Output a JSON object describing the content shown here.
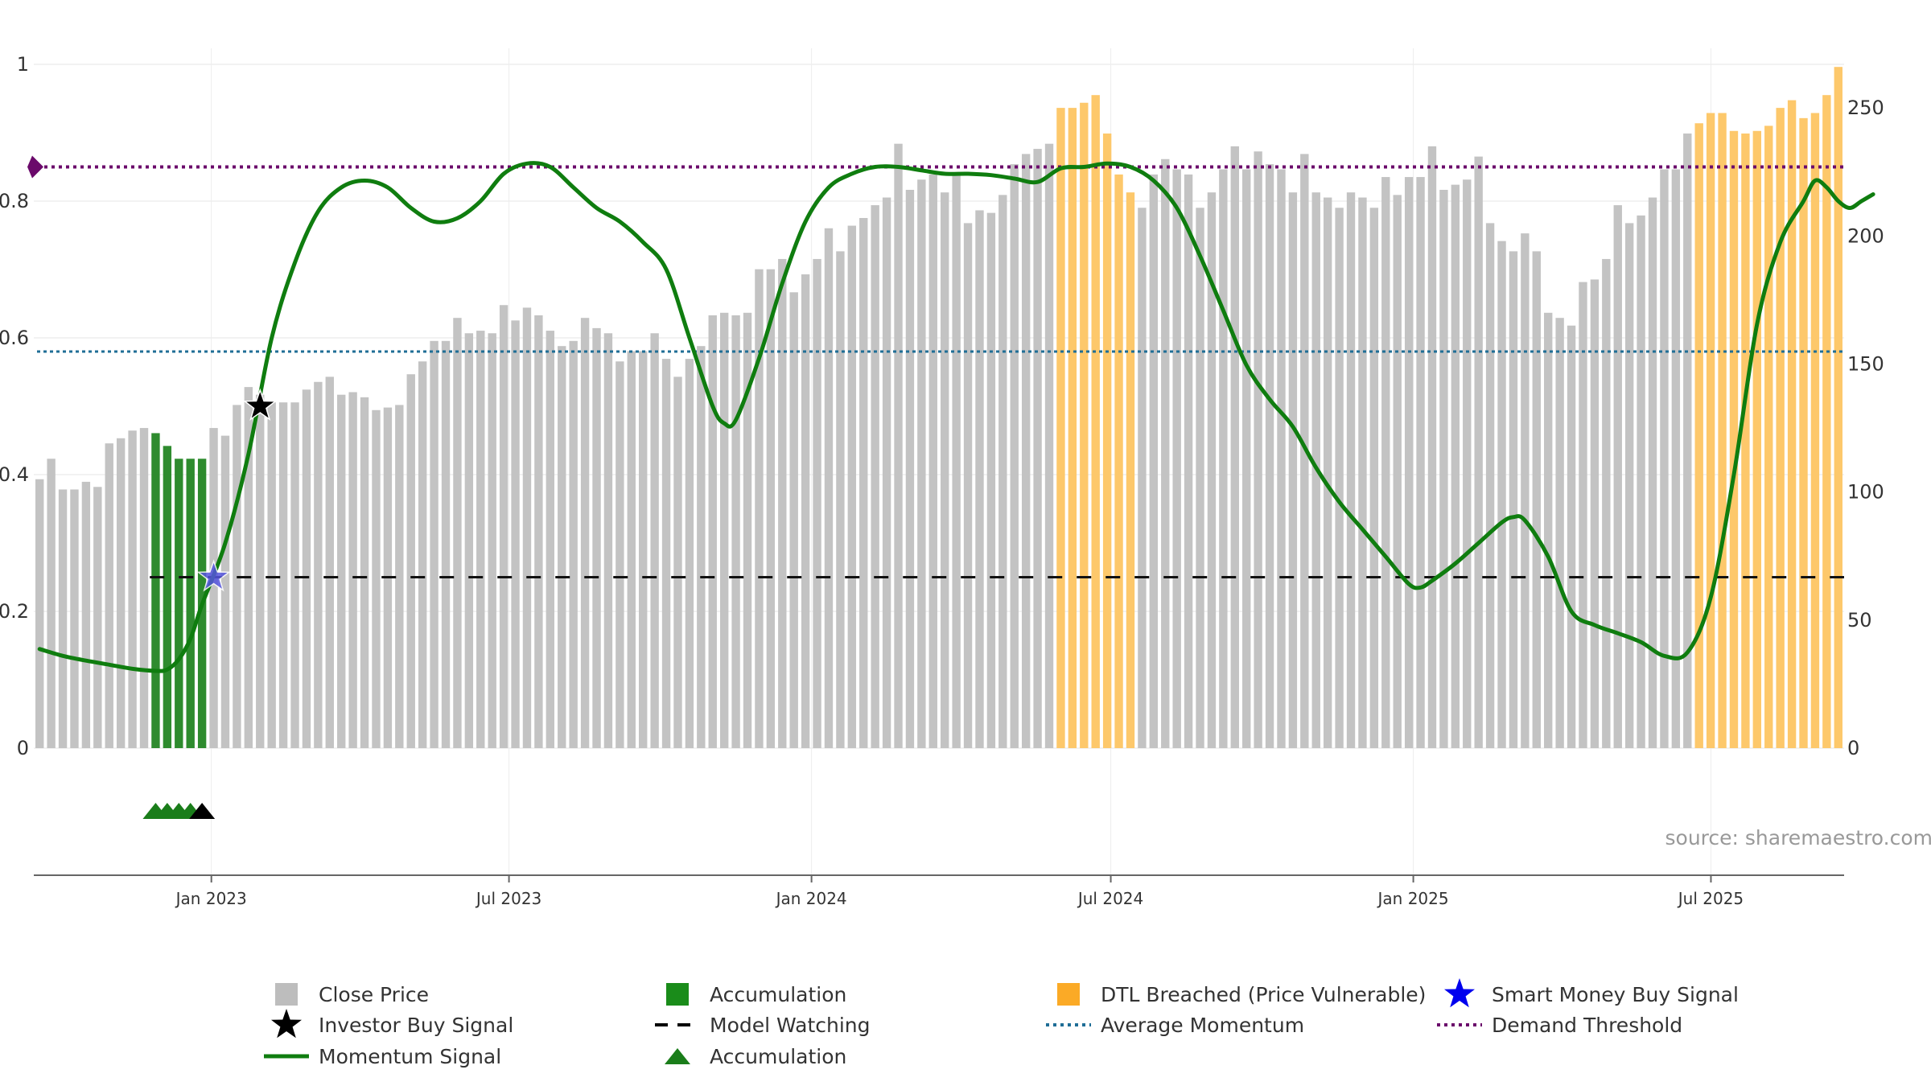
{
  "chart_data": {
    "type": "bar",
    "title": "",
    "source_label": "source: sharemaestro.com",
    "y_left": {
      "range": [
        0,
        1
      ],
      "ticks": [
        0,
        0.2,
        0.4,
        0.6,
        0.8,
        1
      ],
      "labels": [
        "0",
        "0.2",
        "0.4",
        "0.6",
        "0.8",
        "1"
      ]
    },
    "y_right": {
      "range": [
        0,
        267
      ],
      "ticks": [
        0,
        50,
        100,
        150,
        200,
        250
      ],
      "labels": [
        "0",
        "50",
        "100",
        "150",
        "200",
        "250"
      ]
    },
    "x_axis": {
      "range": [
        "2022-09-15",
        "2025-09-20"
      ],
      "ticks": [
        "Jan 2023",
        "Jul 2023",
        "Jan 2024",
        "Jul 2024",
        "Jan 2025",
        "Jul 2025"
      ]
    },
    "close_price": [
      105,
      113,
      101,
      101,
      104,
      102,
      119,
      121,
      124,
      125,
      123,
      118,
      113,
      113,
      113,
      125,
      122,
      134,
      141,
      138,
      135,
      135,
      135,
      140,
      143,
      145,
      138,
      139,
      137,
      132,
      133,
      134,
      146,
      151,
      159,
      159,
      168,
      162,
      163,
      162,
      173,
      167,
      172,
      169,
      163,
      157,
      159,
      168,
      164,
      162,
      151,
      155,
      155,
      162,
      152,
      145,
      152,
      157,
      169,
      170,
      169,
      170,
      187,
      187,
      191,
      178,
      185,
      191,
      203,
      194,
      204,
      207,
      212,
      215,
      236,
      218,
      222,
      224,
      217,
      224,
      205,
      210,
      209,
      216,
      228,
      232,
      234,
      236,
      250,
      250,
      252,
      255,
      240,
      224,
      217,
      211,
      224,
      230,
      226,
      224,
      211,
      217,
      226,
      235,
      226,
      233,
      228,
      226,
      217,
      232,
      217,
      215,
      211,
      217,
      215,
      211,
      223,
      216,
      223,
      223,
      235,
      218,
      220,
      222,
      231,
      205,
      198,
      194,
      201,
      194,
      170,
      168,
      165,
      182,
      183,
      191,
      212,
      205,
      208,
      215,
      226,
      226,
      240,
      244,
      248,
      248,
      241,
      240,
      241,
      243,
      250,
      253,
      246,
      248,
      255,
      266
    ],
    "segments": [
      {
        "name": "Accumulation",
        "color": "#2e8b2e",
        "from": 10,
        "to": 14
      },
      {
        "name": "DTL Breached (Price Vulnerable)",
        "color": "#fdc86b",
        "from": 88,
        "to": 94
      },
      {
        "name": "DTL Breached (Price Vulnerable)",
        "color": "#fdc86b",
        "from": 143,
        "to": 155
      }
    ],
    "momentum_signal": {
      "points": [
        [
          0,
          0.145
        ],
        [
          2,
          0.135
        ],
        [
          4,
          0.128
        ],
        [
          6,
          0.122
        ],
        [
          8,
          0.116
        ],
        [
          10,
          0.113
        ],
        [
          11,
          0.115
        ],
        [
          12,
          0.13
        ],
        [
          13,
          0.16
        ],
        [
          14,
          0.21
        ],
        [
          16,
          0.3
        ],
        [
          18,
          0.43
        ],
        [
          20,
          0.6
        ],
        [
          22,
          0.71
        ],
        [
          24,
          0.785
        ],
        [
          26,
          0.82
        ],
        [
          28,
          0.83
        ],
        [
          30,
          0.82
        ],
        [
          32,
          0.79
        ],
        [
          34,
          0.77
        ],
        [
          36,
          0.775
        ],
        [
          38,
          0.8
        ],
        [
          40,
          0.84
        ],
        [
          42,
          0.855
        ],
        [
          44,
          0.85
        ],
        [
          46,
          0.82
        ],
        [
          48,
          0.79
        ],
        [
          50,
          0.77
        ],
        [
          52,
          0.74
        ],
        [
          54,
          0.7
        ],
        [
          56,
          0.6
        ],
        [
          58,
          0.5
        ],
        [
          59,
          0.475
        ],
        [
          60,
          0.48
        ],
        [
          62,
          0.57
        ],
        [
          64,
          0.68
        ],
        [
          66,
          0.77
        ],
        [
          68,
          0.82
        ],
        [
          70,
          0.84
        ],
        [
          72,
          0.85
        ],
        [
          74,
          0.85
        ],
        [
          76,
          0.845
        ],
        [
          78,
          0.84
        ],
        [
          80,
          0.84
        ],
        [
          82,
          0.838
        ],
        [
          84,
          0.833
        ],
        [
          86,
          0.828
        ],
        [
          88,
          0.848
        ],
        [
          90,
          0.85
        ],
        [
          92,
          0.855
        ],
        [
          94,
          0.85
        ],
        [
          96,
          0.83
        ],
        [
          98,
          0.79
        ],
        [
          100,
          0.72
        ],
        [
          102,
          0.64
        ],
        [
          104,
          0.56
        ],
        [
          106,
          0.51
        ],
        [
          108,
          0.47
        ],
        [
          110,
          0.41
        ],
        [
          112,
          0.36
        ],
        [
          114,
          0.32
        ],
        [
          116,
          0.28
        ],
        [
          118,
          0.24
        ],
        [
          119,
          0.235
        ],
        [
          120,
          0.245
        ],
        [
          122,
          0.27
        ],
        [
          124,
          0.3
        ],
        [
          126,
          0.33
        ],
        [
          127,
          0.338
        ],
        [
          128,
          0.333
        ],
        [
          130,
          0.28
        ],
        [
          132,
          0.2
        ],
        [
          134,
          0.18
        ],
        [
          136,
          0.168
        ],
        [
          138,
          0.155
        ],
        [
          140,
          0.135
        ],
        [
          142,
          0.14
        ],
        [
          144,
          0.22
        ],
        [
          146,
          0.4
        ],
        [
          148,
          0.62
        ],
        [
          150,
          0.74
        ],
        [
          152,
          0.8
        ],
        [
          153,
          0.83
        ],
        [
          154,
          0.82
        ],
        [
          155,
          0.8
        ],
        [
          156,
          0.79
        ],
        [
          157,
          0.8
        ],
        [
          158,
          0.81
        ]
      ],
      "color": "#0f7d0f"
    },
    "average_momentum": {
      "value": 0.58,
      "color": "#1f6e96"
    },
    "demand_threshold": {
      "value": 0.85,
      "color": "#6b0a6b"
    },
    "model_watching": {
      "value": 0.25,
      "from_index": 10,
      "color": "#111111"
    },
    "signals": [
      {
        "name": "Investor Buy Signal",
        "index": 19,
        "y": 0.5,
        "color": "#000000",
        "shape": "star"
      },
      {
        "name": "Smart Money Buy Signal",
        "index": 15,
        "y": 0.25,
        "color": "#5555dd",
        "shape": "star"
      }
    ],
    "accumulation_markers": [
      {
        "index": 10,
        "color": "#1a7d1a"
      },
      {
        "index": 11,
        "color": "#1a7d1a"
      },
      {
        "index": 12,
        "color": "#1a7d1a"
      },
      {
        "index": 13,
        "color": "#1a7d1a"
      },
      {
        "index": 14,
        "color": "#000000"
      }
    ],
    "legend": [
      {
        "label": "Close Price",
        "kind": "square",
        "color": "#bdbdbd"
      },
      {
        "label": "Accumulation",
        "kind": "square",
        "color": "#1a8c1a"
      },
      {
        "label": "DTL Breached (Price Vulnerable)",
        "kind": "square",
        "color": "#fbaa26"
      },
      {
        "label": "Smart Money Buy Signal",
        "kind": "star",
        "color": "#0000ee"
      },
      {
        "label": "Investor Buy Signal",
        "kind": "star",
        "color": "#000000"
      },
      {
        "label": "Model Watching",
        "kind": "dash",
        "color": "#000000"
      },
      {
        "label": "Average Momentum",
        "kind": "dot",
        "color": "#1f6e96"
      },
      {
        "label": "Demand Threshold",
        "kind": "dot",
        "color": "#6b0a6b"
      },
      {
        "label": "Momentum Signal",
        "kind": "line",
        "color": "#0f7d0f"
      },
      {
        "label": "Accumulation",
        "kind": "triangle",
        "color": "#1a7d1a"
      }
    ]
  }
}
